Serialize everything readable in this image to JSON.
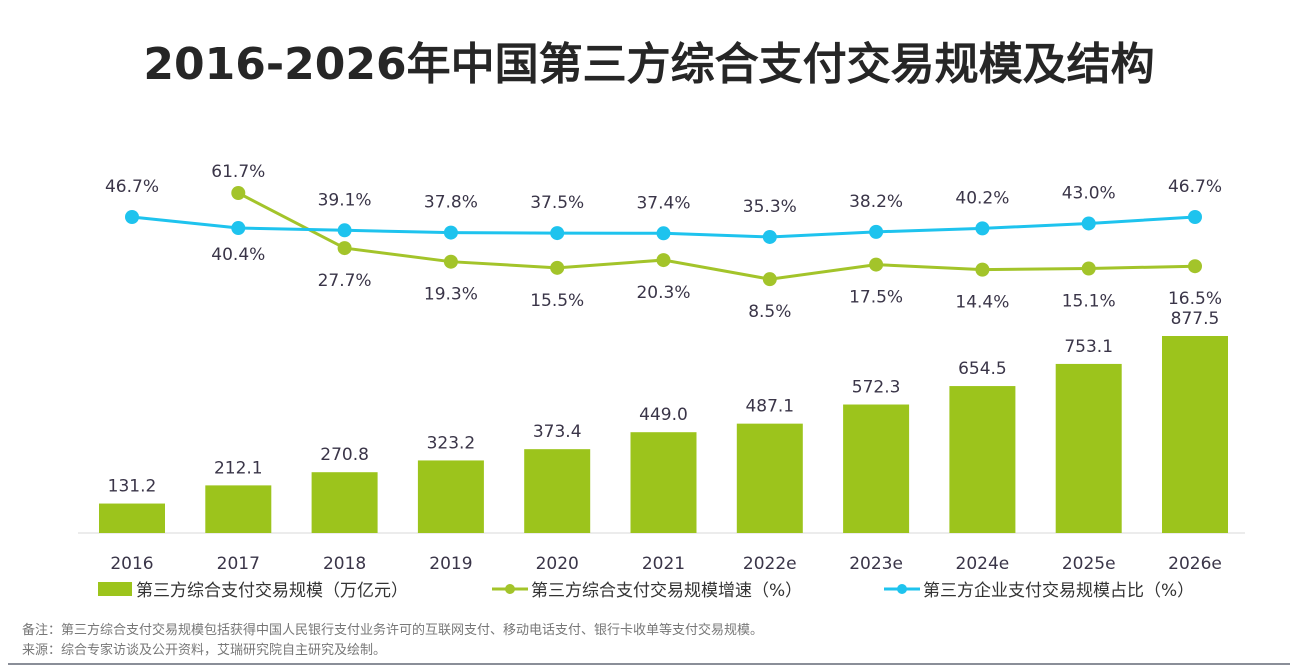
{
  "title": "2016-2026年中国第三方综合支付交易规模及结构",
  "colors": {
    "bar": "#9cc41c",
    "growth": "#a3c42a",
    "share": "#1ec3ee"
  },
  "chart_data": {
    "type": "bar+line",
    "categories": [
      "2016",
      "2017",
      "2018",
      "2019",
      "2020",
      "2021",
      "2022e",
      "2023e",
      "2024e",
      "2025e",
      "2026e"
    ],
    "series": [
      {
        "name": "第三方综合支付交易规模（万亿元）",
        "type": "bar",
        "values": [
          131.2,
          212.1,
          270.8,
          323.2,
          373.4,
          449.0,
          487.1,
          572.3,
          654.5,
          753.1,
          877.5
        ],
        "labels": [
          "131.2",
          "212.1",
          "270.8",
          "323.2",
          "373.4",
          "449.0",
          "487.1",
          "572.3",
          "654.5",
          "753.1",
          "877.5"
        ]
      },
      {
        "name": "第三方综合支付交易规模增速（%）",
        "type": "line",
        "values": [
          null,
          61.7,
          27.7,
          19.3,
          15.5,
          20.3,
          8.5,
          17.5,
          14.4,
          15.1,
          16.5
        ],
        "labels": [
          "",
          "61.7%",
          "27.7%",
          "19.3%",
          "15.5%",
          "20.3%",
          "8.5%",
          "17.5%",
          "14.4%",
          "15.1%",
          "16.5%"
        ]
      },
      {
        "name": "第三方企业支付交易规模占比（%）",
        "type": "line",
        "values": [
          46.7,
          40.4,
          39.1,
          37.8,
          37.5,
          37.4,
          35.3,
          38.2,
          40.2,
          43.0,
          46.7
        ],
        "labels": [
          "46.7%",
          "40.4%",
          "39.1%",
          "37.8%",
          "37.5%",
          "37.4%",
          "35.3%",
          "38.2%",
          "40.2%",
          "43.0%",
          "46.7%"
        ]
      }
    ],
    "legend": "bottom",
    "grid": false
  },
  "notes": {
    "remark": "备注：第三方综合支付交易规模包括获得中国人民银行支付业务许可的互联网支付、移动电话支付、银行卡收单等支付交易规模。",
    "source": "来源：综合专家访谈及公开资料，艾瑞研究院自主研究及绘制。"
  }
}
